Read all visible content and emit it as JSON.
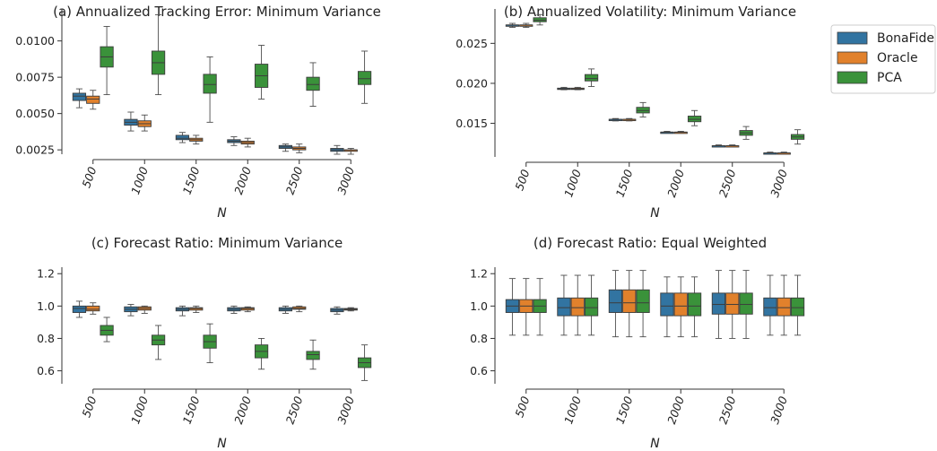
{
  "colors": {
    "BonaFide": "#3274a1",
    "Oracle": "#e1812c",
    "PCA": "#3a923a"
  },
  "legend": {
    "placement": "top-right",
    "items": [
      "BonaFide",
      "Oracle",
      "PCA"
    ]
  },
  "chart_data": [
    {
      "type": "box",
      "title": "(a) Annualized Tracking Error: Minimum Variance",
      "xlabel": "N",
      "ylabel": "",
      "categories": [
        "500",
        "1000",
        "1500",
        "2000",
        "2500",
        "3000"
      ],
      "ylim": [
        0.0022,
        0.0122
      ],
      "yticks": [
        0.0025,
        0.005,
        0.0075,
        0.01
      ],
      "ytick_labels": [
        "0.0025",
        "0.0050",
        "0.0075",
        "0.0100"
      ],
      "series": [
        {
          "name": "BonaFide",
          "boxes": [
            {
              "min": 0.0054,
              "q1": 0.0059,
              "median": 0.0062,
              "q3": 0.0064,
              "max": 0.0067
            },
            {
              "min": 0.0038,
              "q1": 0.0042,
              "median": 0.0044,
              "q3": 0.0046,
              "max": 0.0051
            },
            {
              "min": 0.003,
              "q1": 0.0032,
              "median": 0.0033,
              "q3": 0.0035,
              "max": 0.0037
            },
            {
              "min": 0.0028,
              "q1": 0.003,
              "median": 0.0031,
              "q3": 0.0032,
              "max": 0.0034
            },
            {
              "min": 0.0024,
              "q1": 0.0026,
              "median": 0.0027,
              "q3": 0.0028,
              "max": 0.0029
            },
            {
              "min": 0.0022,
              "q1": 0.0024,
              "median": 0.0025,
              "q3": 0.0026,
              "max": 0.0028
            }
          ]
        },
        {
          "name": "Oracle",
          "boxes": [
            {
              "min": 0.0053,
              "q1": 0.0057,
              "median": 0.006,
              "q3": 0.0062,
              "max": 0.0066
            },
            {
              "min": 0.0038,
              "q1": 0.0041,
              "median": 0.0043,
              "q3": 0.0045,
              "max": 0.0049
            },
            {
              "min": 0.0029,
              "q1": 0.0031,
              "median": 0.0032,
              "q3": 0.0033,
              "max": 0.0035
            },
            {
              "min": 0.0027,
              "q1": 0.0029,
              "median": 0.003,
              "q3": 0.0031,
              "max": 0.0033
            },
            {
              "min": 0.0023,
              "q1": 0.0025,
              "median": 0.0026,
              "q3": 0.0027,
              "max": 0.0029
            },
            {
              "min": 0.0022,
              "q1": 0.0024,
              "median": 0.0025,
              "q3": 0.0025,
              "max": 0.0026
            }
          ]
        },
        {
          "name": "PCA",
          "boxes": [
            {
              "min": 0.0063,
              "q1": 0.0082,
              "median": 0.0089,
              "q3": 0.0096,
              "max": 0.011
            },
            {
              "min": 0.0063,
              "q1": 0.0077,
              "median": 0.0085,
              "q3": 0.0093,
              "max": 0.0118
            },
            {
              "min": 0.0044,
              "q1": 0.0064,
              "median": 0.007,
              "q3": 0.0077,
              "max": 0.0089
            },
            {
              "min": 0.006,
              "q1": 0.0068,
              "median": 0.0076,
              "q3": 0.0084,
              "max": 0.0097
            },
            {
              "min": 0.0055,
              "q1": 0.0066,
              "median": 0.007,
              "q3": 0.0075,
              "max": 0.0085
            },
            {
              "min": 0.0057,
              "q1": 0.007,
              "median": 0.0074,
              "q3": 0.0079,
              "max": 0.0093
            }
          ]
        }
      ]
    },
    {
      "type": "box",
      "title": "(b) Annualized Volatility: Minimum Variance",
      "xlabel": "N",
      "ylabel": "",
      "categories": [
        "500",
        "1000",
        "1500",
        "2000",
        "2500",
        "3000"
      ],
      "ylim": [
        0.0108,
        0.0293
      ],
      "yticks": [
        0.015,
        0.02,
        0.025
      ],
      "ytick_labels": [
        "0.015",
        "0.020",
        "0.025"
      ],
      "series": [
        {
          "name": "BonaFide",
          "boxes": [
            {
              "min": 0.027,
              "q1": 0.0272,
              "median": 0.0273,
              "q3": 0.0273,
              "max": 0.0275
            },
            {
              "min": 0.0192,
              "q1": 0.0193,
              "median": 0.0193,
              "q3": 0.0194,
              "max": 0.0195
            },
            {
              "min": 0.0153,
              "q1": 0.0154,
              "median": 0.0155,
              "q3": 0.0155,
              "max": 0.0156
            },
            {
              "min": 0.0138,
              "q1": 0.0138,
              "median": 0.0139,
              "q3": 0.0139,
              "max": 0.014
            },
            {
              "min": 0.0121,
              "q1": 0.0121,
              "median": 0.0122,
              "q3": 0.0122,
              "max": 0.0123
            },
            {
              "min": 0.0112,
              "q1": 0.0112,
              "median": 0.0113,
              "q3": 0.0113,
              "max": 0.0114
            }
          ]
        },
        {
          "name": "Oracle",
          "boxes": [
            {
              "min": 0.027,
              "q1": 0.0272,
              "median": 0.0273,
              "q3": 0.0273,
              "max": 0.0275
            },
            {
              "min": 0.0192,
              "q1": 0.0193,
              "median": 0.0193,
              "q3": 0.0194,
              "max": 0.0195
            },
            {
              "min": 0.0153,
              "q1": 0.0154,
              "median": 0.0155,
              "q3": 0.0155,
              "max": 0.0156
            },
            {
              "min": 0.0138,
              "q1": 0.0138,
              "median": 0.0139,
              "q3": 0.0139,
              "max": 0.014
            },
            {
              "min": 0.0121,
              "q1": 0.0121,
              "median": 0.0122,
              "q3": 0.0122,
              "max": 0.0123
            },
            {
              "min": 0.0112,
              "q1": 0.0112,
              "median": 0.0113,
              "q3": 0.0113,
              "max": 0.0114
            }
          ]
        },
        {
          "name": "PCA",
          "boxes": [
            {
              "min": 0.0273,
              "q1": 0.0277,
              "median": 0.0279,
              "q3": 0.0282,
              "max": 0.0286
            },
            {
              "min": 0.0196,
              "q1": 0.0203,
              "median": 0.0206,
              "q3": 0.0211,
              "max": 0.0218
            },
            {
              "min": 0.0158,
              "q1": 0.0163,
              "median": 0.0166,
              "q3": 0.017,
              "max": 0.0176
            },
            {
              "min": 0.0147,
              "q1": 0.0152,
              "median": 0.0155,
              "q3": 0.0159,
              "max": 0.0166
            },
            {
              "min": 0.013,
              "q1": 0.0135,
              "median": 0.0138,
              "q3": 0.0141,
              "max": 0.0146
            },
            {
              "min": 0.0124,
              "q1": 0.013,
              "median": 0.0133,
              "q3": 0.0136,
              "max": 0.0142
            }
          ]
        }
      ]
    },
    {
      "type": "box",
      "title": "(c) Forecast Ratio: Minimum Variance",
      "xlabel": "N",
      "ylabel": "",
      "categories": [
        "500",
        "1000",
        "1500",
        "2000",
        "2500",
        "3000"
      ],
      "ylim": [
        0.52,
        1.24
      ],
      "yticks": [
        0.6,
        0.8,
        1.0,
        1.2
      ],
      "ytick_labels": [
        "0.6",
        "0.8",
        "1.0",
        "1.2"
      ],
      "series": [
        {
          "name": "BonaFide",
          "boxes": [
            {
              "min": 0.93,
              "q1": 0.96,
              "median": 0.985,
              "q3": 1.0,
              "max": 1.03
            },
            {
              "min": 0.94,
              "q1": 0.965,
              "median": 0.98,
              "q3": 0.995,
              "max": 1.01
            },
            {
              "min": 0.94,
              "q1": 0.97,
              "median": 0.98,
              "q3": 0.99,
              "max": 1.0
            },
            {
              "min": 0.955,
              "q1": 0.97,
              "median": 0.98,
              "q3": 0.99,
              "max": 1.0
            },
            {
              "min": 0.955,
              "q1": 0.97,
              "median": 0.98,
              "q3": 0.99,
              "max": 1.0
            },
            {
              "min": 0.95,
              "q1": 0.965,
              "median": 0.975,
              "q3": 0.985,
              "max": 0.995
            }
          ]
        },
        {
          "name": "Oracle",
          "boxes": [
            {
              "min": 0.95,
              "q1": 0.97,
              "median": 0.98,
              "q3": 1.0,
              "max": 1.02
            },
            {
              "min": 0.955,
              "q1": 0.975,
              "median": 0.985,
              "q3": 0.995,
              "max": 1.0
            },
            {
              "min": 0.96,
              "q1": 0.975,
              "median": 0.985,
              "q3": 0.99,
              "max": 1.0
            },
            {
              "min": 0.965,
              "q1": 0.975,
              "median": 0.985,
              "q3": 0.99,
              "max": 0.995
            },
            {
              "min": 0.965,
              "q1": 0.98,
              "median": 0.985,
              "q3": 0.995,
              "max": 1.0
            },
            {
              "min": 0.97,
              "q1": 0.975,
              "median": 0.98,
              "q3": 0.985,
              "max": 0.99
            }
          ]
        },
        {
          "name": "PCA",
          "boxes": [
            {
              "min": 0.78,
              "q1": 0.82,
              "median": 0.85,
              "q3": 0.88,
              "max": 0.93
            },
            {
              "min": 0.67,
              "q1": 0.76,
              "median": 0.79,
              "q3": 0.82,
              "max": 0.88
            },
            {
              "min": 0.65,
              "q1": 0.74,
              "median": 0.78,
              "q3": 0.82,
              "max": 0.89
            },
            {
              "min": 0.61,
              "q1": 0.68,
              "median": 0.72,
              "q3": 0.76,
              "max": 0.8
            },
            {
              "min": 0.61,
              "q1": 0.67,
              "median": 0.7,
              "q3": 0.72,
              "max": 0.79
            },
            {
              "min": 0.54,
              "q1": 0.62,
              "median": 0.65,
              "q3": 0.68,
              "max": 0.76
            }
          ]
        }
      ]
    },
    {
      "type": "box",
      "title": "(d) Forecast Ratio: Equal Weighted",
      "xlabel": "N",
      "ylabel": "",
      "categories": [
        "500",
        "1000",
        "1500",
        "2000",
        "2500",
        "3000"
      ],
      "ylim": [
        0.52,
        1.24
      ],
      "yticks": [
        0.6,
        0.8,
        1.0,
        1.2
      ],
      "ytick_labels": [
        "0.6",
        "0.8",
        "1.0",
        "1.2"
      ],
      "series": [
        {
          "name": "BonaFide",
          "boxes": [
            {
              "min": 0.82,
              "q1": 0.96,
              "median": 1.0,
              "q3": 1.04,
              "max": 1.17
            },
            {
              "min": 0.82,
              "q1": 0.94,
              "median": 0.99,
              "q3": 1.05,
              "max": 1.19
            },
            {
              "min": 0.81,
              "q1": 0.96,
              "median": 1.02,
              "q3": 1.1,
              "max": 1.22
            },
            {
              "min": 0.81,
              "q1": 0.94,
              "median": 1.0,
              "q3": 1.08,
              "max": 1.18
            },
            {
              "min": 0.8,
              "q1": 0.95,
              "median": 1.01,
              "q3": 1.08,
              "max": 1.22
            },
            {
              "min": 0.82,
              "q1": 0.94,
              "median": 0.99,
              "q3": 1.05,
              "max": 1.19
            }
          ]
        },
        {
          "name": "Oracle",
          "boxes": [
            {
              "min": 0.82,
              "q1": 0.96,
              "median": 1.0,
              "q3": 1.04,
              "max": 1.17
            },
            {
              "min": 0.82,
              "q1": 0.94,
              "median": 0.99,
              "q3": 1.05,
              "max": 1.19
            },
            {
              "min": 0.81,
              "q1": 0.96,
              "median": 1.02,
              "q3": 1.1,
              "max": 1.22
            },
            {
              "min": 0.81,
              "q1": 0.94,
              "median": 1.0,
              "q3": 1.08,
              "max": 1.18
            },
            {
              "min": 0.8,
              "q1": 0.95,
              "median": 1.01,
              "q3": 1.08,
              "max": 1.22
            },
            {
              "min": 0.82,
              "q1": 0.94,
              "median": 0.99,
              "q3": 1.05,
              "max": 1.19
            }
          ]
        },
        {
          "name": "PCA",
          "boxes": [
            {
              "min": 0.82,
              "q1": 0.96,
              "median": 1.0,
              "q3": 1.04,
              "max": 1.17
            },
            {
              "min": 0.82,
              "q1": 0.94,
              "median": 0.99,
              "q3": 1.05,
              "max": 1.19
            },
            {
              "min": 0.81,
              "q1": 0.96,
              "median": 1.02,
              "q3": 1.1,
              "max": 1.22
            },
            {
              "min": 0.81,
              "q1": 0.94,
              "median": 1.0,
              "q3": 1.08,
              "max": 1.18
            },
            {
              "min": 0.8,
              "q1": 0.95,
              "median": 1.01,
              "q3": 1.08,
              "max": 1.22
            },
            {
              "min": 0.82,
              "q1": 0.94,
              "median": 0.99,
              "q3": 1.05,
              "max": 1.19
            }
          ]
        }
      ]
    }
  ]
}
